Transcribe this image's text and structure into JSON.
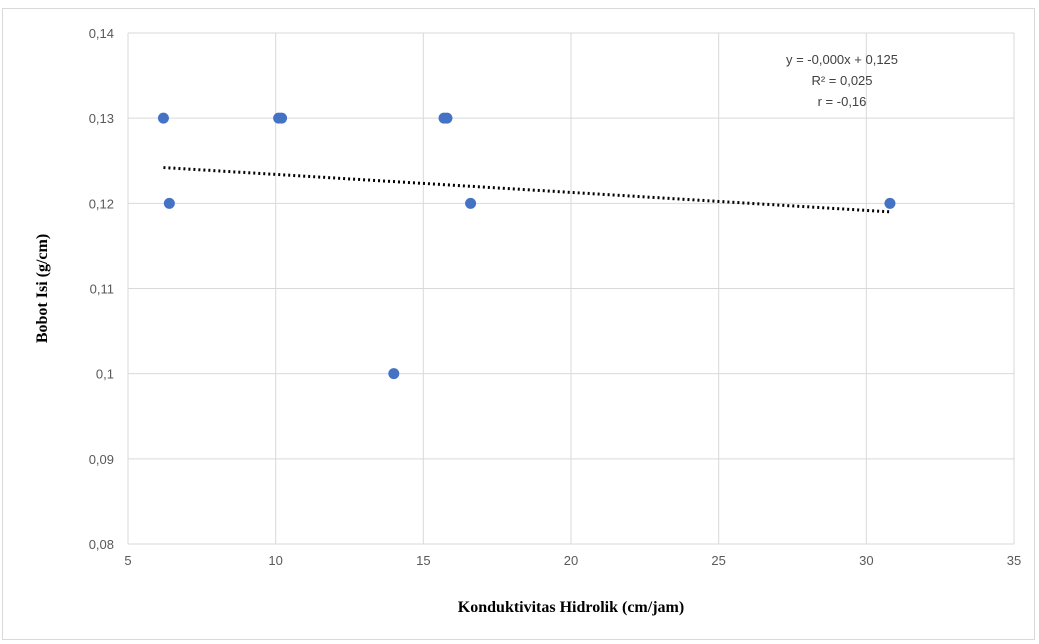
{
  "chart_data": {
    "type": "scatter",
    "title": "",
    "xlabel": "Konduktivitas Hidrolik (cm/jam)",
    "ylabel": "Bobot Isi (g/cm)",
    "xlim": [
      5,
      35
    ],
    "ylim": [
      0.08,
      0.14
    ],
    "x_ticks": [
      "5",
      "10",
      "15",
      "20",
      "25",
      "30",
      "35"
    ],
    "y_ticks": [
      "0,08",
      "0,09",
      "0,1",
      "0,11",
      "0,12",
      "0,13",
      "0,14"
    ],
    "grid": true,
    "marker_color": "#4472c4",
    "trendline_color": "#000000",
    "points": [
      {
        "x": 6.2,
        "y": 0.13
      },
      {
        "x": 6.4,
        "y": 0.12
      },
      {
        "x": 10.1,
        "y": 0.13
      },
      {
        "x": 10.2,
        "y": 0.13
      },
      {
        "x": 14.0,
        "y": 0.1
      },
      {
        "x": 15.7,
        "y": 0.13
      },
      {
        "x": 15.8,
        "y": 0.13
      },
      {
        "x": 16.6,
        "y": 0.12
      },
      {
        "x": 30.8,
        "y": 0.12
      }
    ],
    "trendline": {
      "type": "linear",
      "x_start": 6.2,
      "y_start": 0.1242,
      "x_end": 30.8,
      "y_end": 0.119
    },
    "annotations": [
      "y = -0,000x + 0,125",
      "R² = 0,025",
      "r = -0,16"
    ]
  }
}
